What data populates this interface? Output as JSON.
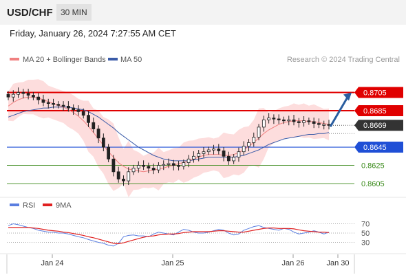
{
  "header": {
    "symbol": "USD/CHF",
    "timeframe": "30 MIN"
  },
  "datetime": "Friday, January 26, 2024 7:27:55 AM CET",
  "colors": {
    "resistance": "#e00000",
    "support": "#1f4fd6",
    "target": "#3a8a1a",
    "ma20": "#f08080",
    "ma50": "#3a5ba8",
    "bollinger_fill": "#fcd2d2",
    "candle_up": "#ffffff",
    "candle_down": "#222222",
    "arrow": "#2a5d9f",
    "rsi": "#5a7ee0",
    "rsi_ma": "#e02020",
    "current_bg": "#333333"
  },
  "chart_data": [
    {
      "type": "candlestick",
      "title": "USD/CHF 30 MIN",
      "legend": [
        "MA 20 + Bollinger Bands",
        "MA 50"
      ],
      "watermark": "Research © 2024 Trading Central",
      "x_ticks": [
        "Jan 24",
        "Jan 25",
        "Jan 26",
        "Jan 30"
      ],
      "ylim": [
        0.8596,
        0.8722
      ],
      "current_price": 0.8669,
      "levels": [
        {
          "label": "0.8705",
          "value": 0.8705,
          "kind": "resistance"
        },
        {
          "label": "0.8685",
          "value": 0.8685,
          "kind": "resistance"
        },
        {
          "label": "0.8645",
          "value": 0.8645,
          "kind": "support"
        },
        {
          "label": "0.8625",
          "value": 0.8625,
          "kind": "target"
        },
        {
          "label": "0.8605",
          "value": 0.8605,
          "kind": "target"
        }
      ],
      "arrow": {
        "from": 0.8669,
        "to": 0.8705
      },
      "close_series": [
        0.87,
        0.8703,
        0.8705,
        0.8704,
        0.8702,
        0.87,
        0.8697,
        0.8694,
        0.8693,
        0.8692,
        0.8691,
        0.869,
        0.8688,
        0.8686,
        0.8684,
        0.868,
        0.8672,
        0.8665,
        0.8655,
        0.8645,
        0.8632,
        0.8618,
        0.861,
        0.8608,
        0.8618,
        0.8622,
        0.8625,
        0.8624,
        0.8622,
        0.862,
        0.8625,
        0.8626,
        0.8627,
        0.8625,
        0.8624,
        0.8628,
        0.8632,
        0.8635,
        0.8638,
        0.864,
        0.8642,
        0.8643,
        0.8641,
        0.8635,
        0.863,
        0.8634,
        0.864,
        0.8646,
        0.865,
        0.8656,
        0.8667,
        0.8675,
        0.8677,
        0.8676,
        0.8675,
        0.8674,
        0.8675,
        0.8673,
        0.8672,
        0.8674,
        0.8673,
        0.8671,
        0.867,
        0.867,
        0.8669
      ],
      "ma20_series": [
        0.869,
        0.8694,
        0.8697,
        0.8699,
        0.87,
        0.87,
        0.8699,
        0.8697,
        0.8695,
        0.8693,
        0.8691,
        0.8689,
        0.8686,
        0.8683,
        0.8679,
        0.8674,
        0.8668,
        0.8661,
        0.8654,
        0.8647,
        0.864,
        0.8634,
        0.8628,
        0.8624,
        0.8621,
        0.862,
        0.8619,
        0.8618,
        0.8619,
        0.862,
        0.8621,
        0.8622,
        0.8624,
        0.8625,
        0.8627,
        0.8628,
        0.863,
        0.8632,
        0.8634,
        0.8636,
        0.8637,
        0.8637,
        0.8637,
        0.8636,
        0.8636,
        0.8637,
        0.8639,
        0.8642,
        0.8646,
        0.865,
        0.8655,
        0.866,
        0.8664,
        0.8667,
        0.867,
        0.8672,
        0.8673,
        0.8674,
        0.8674,
        0.8674,
        0.8673,
        0.8673,
        0.8672,
        0.8671,
        0.867
      ],
      "ma50_series": [
        0.8678,
        0.868,
        0.8682,
        0.8684,
        0.8685,
        0.8686,
        0.8687,
        0.8688,
        0.8688,
        0.8689,
        0.8689,
        0.8689,
        0.8689,
        0.8688,
        0.8687,
        0.8686,
        0.8684,
        0.8681,
        0.8678,
        0.8674,
        0.867,
        0.8666,
        0.8661,
        0.8657,
        0.8653,
        0.8649,
        0.8645,
        0.8642,
        0.8639,
        0.8636,
        0.8634,
        0.8632,
        0.8631,
        0.863,
        0.863,
        0.863,
        0.863,
        0.8631,
        0.8632,
        0.8633,
        0.8634,
        0.8634,
        0.8634,
        0.8634,
        0.8634,
        0.8634,
        0.8635,
        0.8636,
        0.8638,
        0.864,
        0.8642,
        0.8645,
        0.8648,
        0.865,
        0.8652,
        0.8654,
        0.8655,
        0.8656,
        0.8657,
        0.8658,
        0.8659,
        0.8659,
        0.866,
        0.866,
        0.8661
      ],
      "bb_width": 0.0016
    },
    {
      "type": "line",
      "legend": [
        "RSI",
        "9MA"
      ],
      "y_ticks": [
        "70",
        "50",
        "30"
      ],
      "ylim": [
        10,
        90
      ],
      "rsi_series": [
        66,
        70,
        68,
        65,
        62,
        60,
        56,
        54,
        52,
        52,
        50,
        50,
        48,
        45,
        42,
        40,
        36,
        33,
        30,
        28,
        24,
        22,
        28,
        42,
        45,
        46,
        44,
        44,
        42,
        48,
        52,
        50,
        48,
        46,
        52,
        58,
        56,
        52,
        50,
        50,
        52,
        55,
        58,
        56,
        50,
        46,
        48,
        56,
        60,
        64,
        66,
        62,
        60,
        58,
        56,
        60,
        58,
        52,
        48,
        50,
        52,
        55,
        52,
        48,
        52
      ],
      "rsi_ma_series": [
        62,
        62,
        62,
        62,
        62,
        61,
        60,
        58,
        56,
        55,
        54,
        52,
        51,
        49,
        47,
        45,
        42,
        40,
        37,
        34,
        31,
        28,
        27,
        29,
        32,
        35,
        38,
        41,
        43,
        44,
        46,
        47,
        48,
        48,
        49,
        51,
        52,
        53,
        53,
        53,
        53,
        54,
        55,
        55,
        54,
        53,
        52,
        52,
        54,
        56,
        58,
        60,
        61,
        61,
        60,
        60,
        60,
        59,
        57,
        55,
        54,
        53,
        52,
        52,
        51
      ]
    }
  ]
}
